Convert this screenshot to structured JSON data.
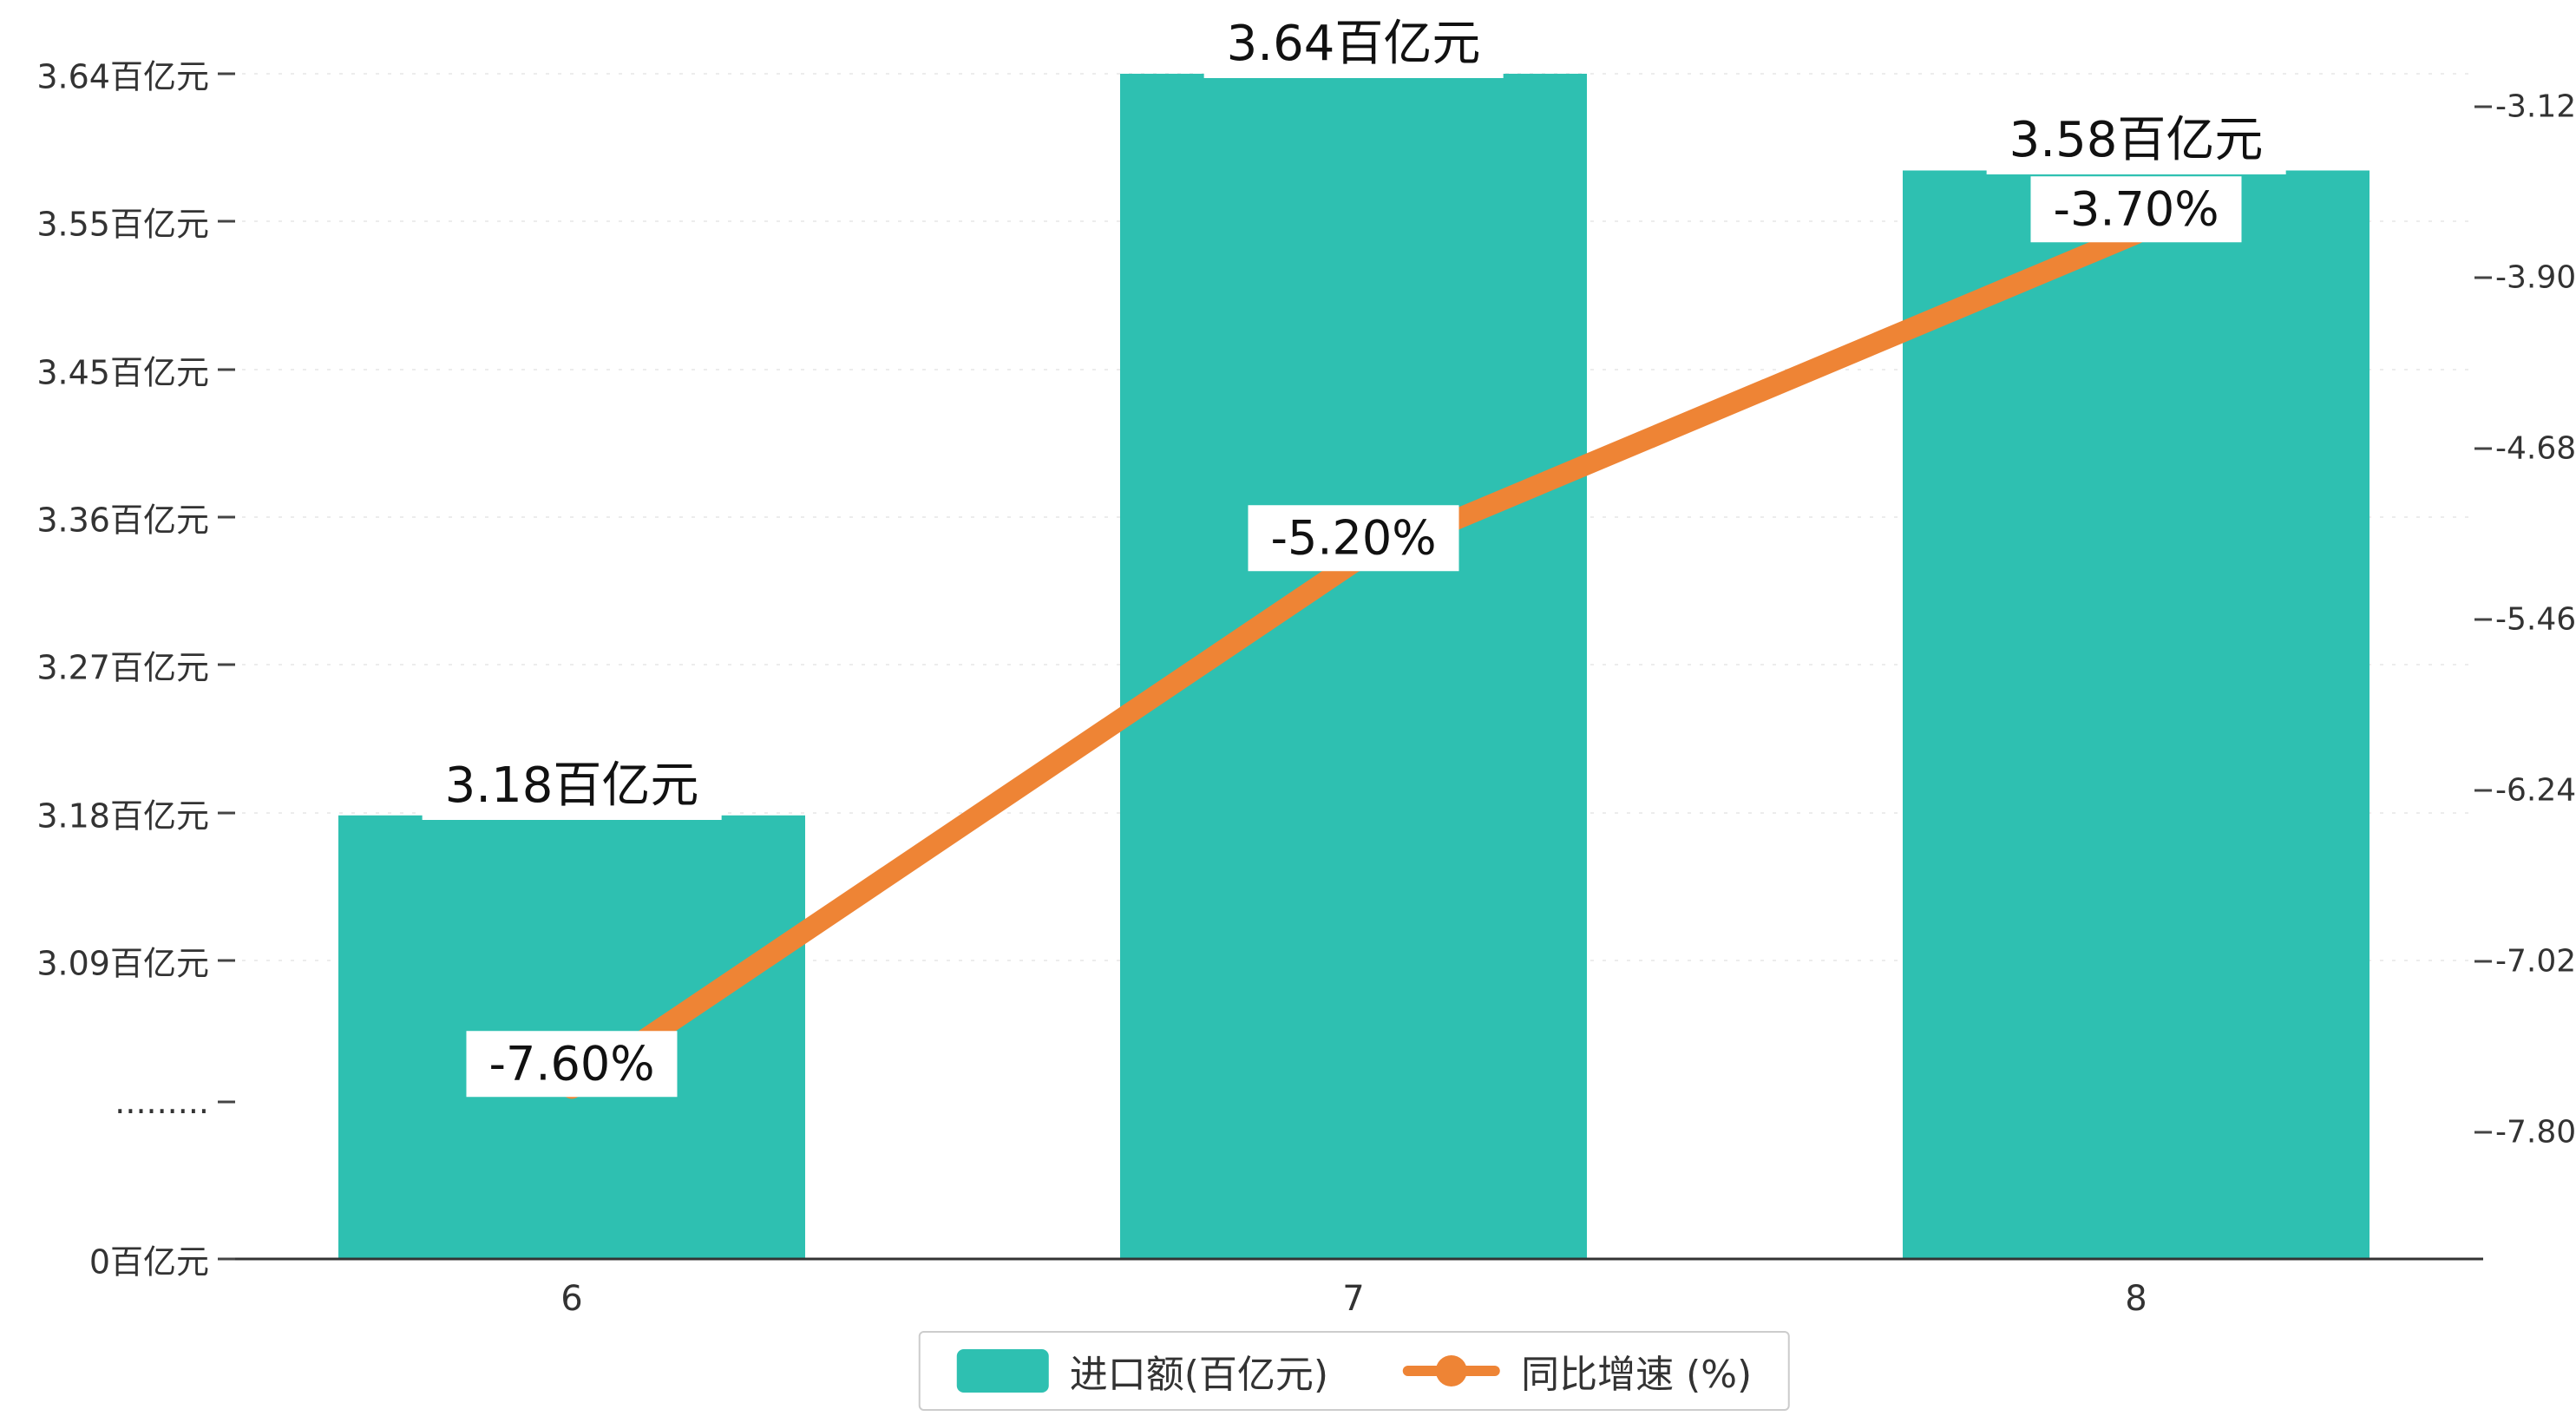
{
  "chart_data": {
    "type": "bar",
    "subtype": "bar+line-combo",
    "categories": [
      "6",
      "7",
      "8"
    ],
    "series": [
      {
        "name": "进口额(百亿元)",
        "type": "bar",
        "axis": "left",
        "color": "#2EC0B1",
        "values": [
          3.18,
          3.64,
          3.58
        ],
        "labels": [
          "3.18百亿元",
          "3.64百亿元",
          "3.58百亿元"
        ]
      },
      {
        "name": "同比增速 (%)",
        "type": "line",
        "axis": "right",
        "color": "#EE8435",
        "values": [
          -7.6,
          -5.2,
          -3.7
        ],
        "labels": [
          "-7.60%",
          "-5.20%",
          "-3.70%"
        ]
      }
    ],
    "left_axis": {
      "tick_labels": [
        "3.64百亿元",
        "3.55百亿元",
        "3.45百亿元",
        "3.36百亿元",
        "3.27百亿元",
        "3.18百亿元",
        "3.09百亿元",
        ".........",
        "0百亿元"
      ],
      "range_top": 3.64,
      "axis_break_between": [
        "3.09百亿元",
        "0百亿元"
      ]
    },
    "right_axis": {
      "tick_labels": [
        "-3.12",
        "-3.90",
        "-4.68",
        "-5.46",
        "-6.24",
        "-7.02",
        "-7.80"
      ],
      "tick_values": [
        -3.12,
        -3.9,
        -4.68,
        -5.46,
        -6.24,
        -7.02,
        -7.8
      ]
    },
    "legend": [
      {
        "label": "进口额(百亿元)",
        "marker": "square",
        "color": "#2EC0B1"
      },
      {
        "label": "同比增速 (%)",
        "marker": "line-dot",
        "color": "#EE8435"
      }
    ],
    "title": "",
    "xlabel": "",
    "ylabel": "",
    "grid": true,
    "legend_position": "bottom-center",
    "background": "#ffffff"
  }
}
